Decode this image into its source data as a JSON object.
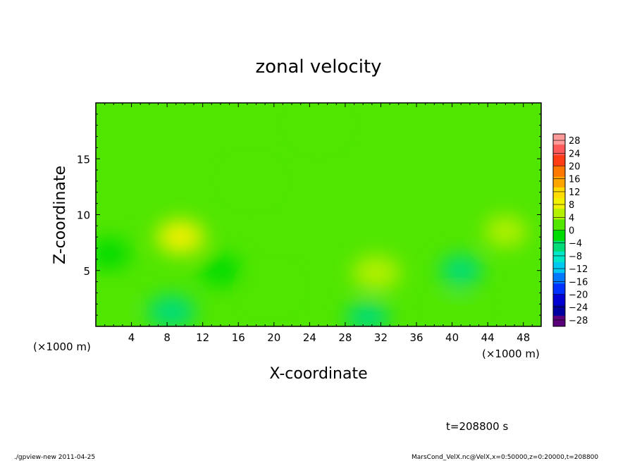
{
  "chart_data": {
    "type": "heatmap",
    "title": "zonal velocity",
    "xlabel": "X-coordinate",
    "ylabel": "Z-coordinate",
    "x_unit_left": "(×1000 m)",
    "x_unit_right": "(×1000 m)",
    "xlim": [
      0,
      50
    ],
    "ylim": [
      0,
      20
    ],
    "x_ticks": [
      4,
      8,
      12,
      16,
      20,
      24,
      28,
      32,
      36,
      40,
      44,
      48
    ],
    "y_ticks": [
      5,
      10,
      15
    ],
    "colorbar": {
      "levels": [
        28,
        24,
        20,
        16,
        12,
        8,
        4,
        0,
        -4,
        -8,
        -12,
        -16,
        -20,
        -24,
        -28
      ],
      "range": [
        -30,
        30
      ],
      "colors": [
        "#ff9a9a",
        "#ff5a5a",
        "#ff3c14",
        "#ff7800",
        "#ffa500",
        "#ffdc00",
        "#f0f000",
        "#b4f000",
        "#50e600",
        "#00dc00",
        "#00dc78",
        "#00e6c8",
        "#00c8f0",
        "#0078ff",
        "#0032ff",
        "#0000d2",
        "#0000a0",
        "#5a007a"
      ]
    },
    "background_value": 0,
    "features": [
      {
        "x": 9.5,
        "z": 8.0,
        "value": 8
      },
      {
        "x": 31.5,
        "z": 4.8,
        "value": 6
      },
      {
        "x": 46.0,
        "z": 8.5,
        "value": 4
      },
      {
        "x": 19.5,
        "z": 3.5,
        "value": 3
      },
      {
        "x": 17.5,
        "z": 13.0,
        "value": 3
      },
      {
        "x": 40.5,
        "z": 1.5,
        "value": 3
      },
      {
        "x": 1.5,
        "z": 1.5,
        "value": 3
      },
      {
        "x": 8.5,
        "z": 1.3,
        "value": -6
      },
      {
        "x": 30.5,
        "z": 0.8,
        "value": -5
      },
      {
        "x": 41.0,
        "z": 5.0,
        "value": -5
      },
      {
        "x": 1.5,
        "z": 6.5,
        "value": -3
      },
      {
        "x": 14.0,
        "z": 5.0,
        "value": -2
      },
      {
        "x": 25.0,
        "z": 18.0,
        "value": 2
      }
    ]
  },
  "annotations": {
    "time": "t=208800 s",
    "footer_left": "./gpview-new  2011-04-25",
    "footer_right": "MarsCond_VelX.nc@VelX,x=0:50000,z=0:20000,t=208800"
  }
}
